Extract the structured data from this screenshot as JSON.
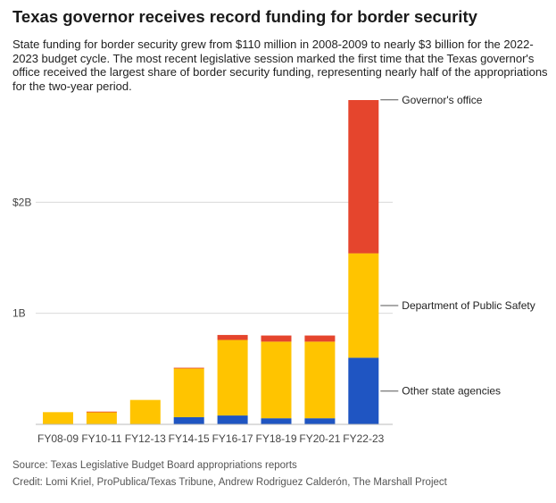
{
  "title": "Texas governor receives record funding for border security",
  "subtitle": "State funding for border security grew from $110 million in 2008-2009 to nearly $3 billion for the 2022-2023 budget cycle. The most recent legislative session marked the first time that the Texas governor's office received the largest share of border security funding, representing nearly half of the appropriations for the two-year period.",
  "source": "Source: Texas Legislative Budget Board appropriations reports",
  "credit": "Credit: Lomi Kriel, ProPublica/Texas Tribune, Andrew Rodriguez Calderón, The Marshall Project",
  "colors": {
    "other": "#1f55c2",
    "dps": "#ffc400",
    "governor": "#e5452d",
    "grid": "#d9d9d9",
    "axis": "#bbbbbb"
  },
  "chart_data": {
    "type": "bar",
    "stacked": true,
    "categories": [
      "FY08-09",
      "FY10-11",
      "FY12-13",
      "FY14-15",
      "FY16-17",
      "FY18-19",
      "FY20-21",
      "FY22-23"
    ],
    "series": [
      {
        "name": "Other state agencies",
        "key": "other",
        "values": [
          0,
          0,
          0,
          0.065,
          0.08,
          0.055,
          0.055,
          0.6
        ]
      },
      {
        "name": "Department of Public Safety",
        "key": "dps",
        "values": [
          0.11,
          0.11,
          0.22,
          0.44,
          0.68,
          0.69,
          0.69,
          0.94
        ]
      },
      {
        "name": "Governor's office",
        "key": "governor",
        "values": [
          0,
          0.005,
          0,
          0.005,
          0.045,
          0.055,
          0.055,
          1.38
        ]
      }
    ],
    "y_ticks": [
      {
        "value": 1,
        "label": "1B"
      },
      {
        "value": 2,
        "label": "$2B"
      }
    ],
    "ylim": [
      0,
      2.92
    ],
    "y_units": "billions of dollars",
    "legend_position": "right, labels aligned to FY22-23 segments"
  }
}
